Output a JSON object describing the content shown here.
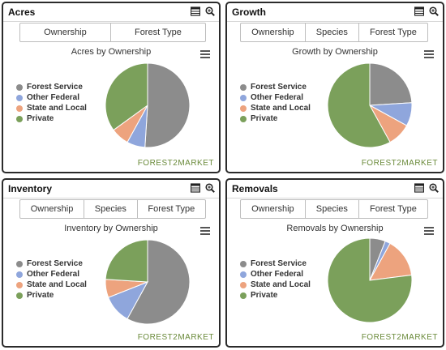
{
  "brand": "FOREST2MARKET",
  "legend": [
    "Forest Service",
    "Other Federal",
    "State and Local",
    "Private"
  ],
  "colors": [
    "#8c8c8c",
    "#8fa6dc",
    "#eda37e",
    "#7ba05b"
  ],
  "panels": [
    {
      "title": "Acres",
      "tabs": [
        "Ownership",
        "Forest Type"
      ]
    },
    {
      "title": "Growth",
      "tabs": [
        "Ownership",
        "Species",
        "Forest Type"
      ]
    },
    {
      "title": "Inventory",
      "tabs": [
        "Ownership",
        "Species",
        "Forest Type"
      ]
    },
    {
      "title": "Removals",
      "tabs": [
        "Ownership",
        "Species",
        "Forest Type"
      ]
    }
  ],
  "chart_data": [
    {
      "type": "pie",
      "title": "Acres by Ownership",
      "categories": [
        "Forest Service",
        "Other Federal",
        "State and Local",
        "Private"
      ],
      "values": [
        51,
        7,
        7,
        35
      ]
    },
    {
      "type": "pie",
      "title": "Growth by Ownership",
      "categories": [
        "Forest Service",
        "Other Federal",
        "State and Local",
        "Private"
      ],
      "values": [
        24,
        9,
        9,
        58
      ]
    },
    {
      "type": "pie",
      "title": "Inventory by Ownership",
      "categories": [
        "Forest Service",
        "Other Federal",
        "State and Local",
        "Private"
      ],
      "values": [
        58,
        11,
        7,
        24
      ]
    },
    {
      "type": "pie",
      "title": "Removals by Ownership",
      "categories": [
        "Forest Service",
        "Other Federal",
        "State and Local",
        "Private"
      ],
      "values": [
        6,
        2,
        15,
        77
      ]
    }
  ]
}
